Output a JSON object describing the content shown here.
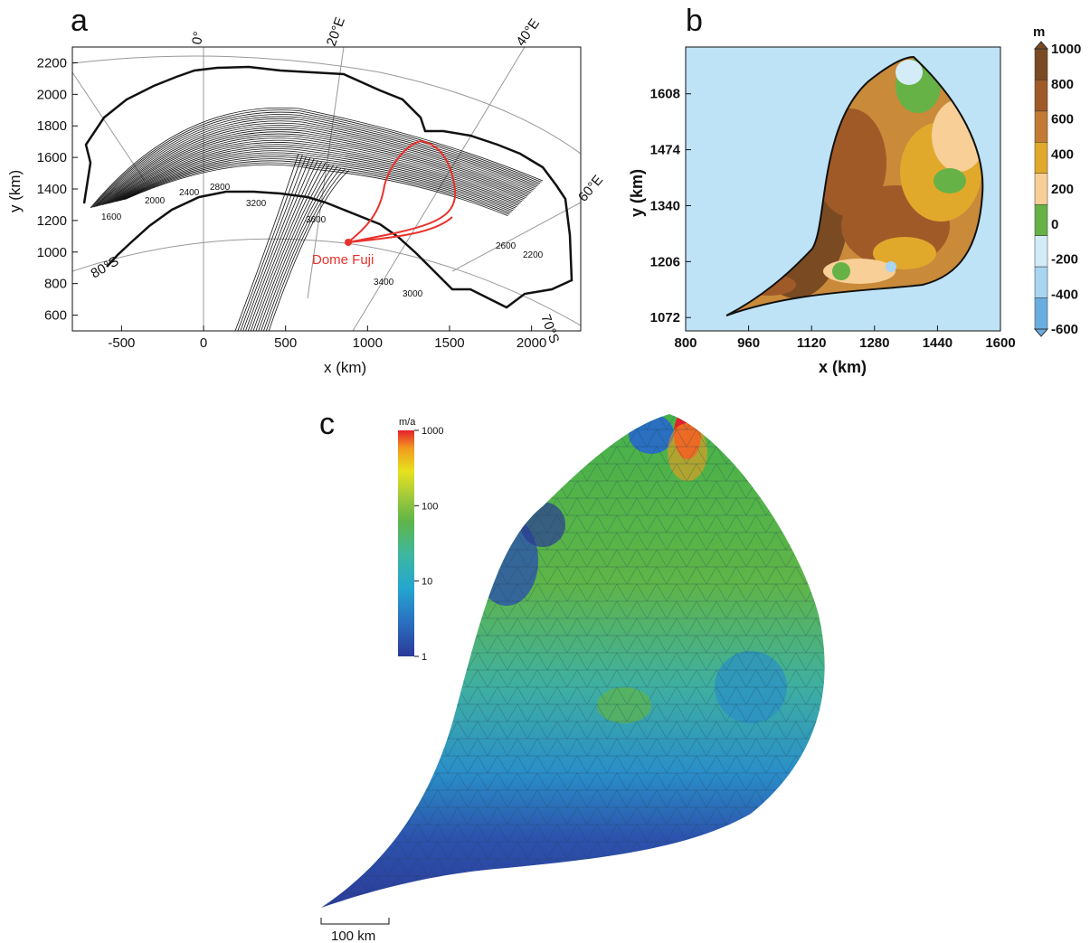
{
  "panels": {
    "a": {
      "label": "a",
      "xlabel": "x (km)",
      "ylabel": "y (km)",
      "x_ticks": [
        "-500",
        "0",
        "500",
        "1000",
        "1500",
        "2000"
      ],
      "y_ticks": [
        "600",
        "800",
        "1000",
        "1200",
        "1400",
        "1600",
        "1800",
        "2000",
        "2200"
      ],
      "meridians": [
        "0°",
        "20°E",
        "40°E",
        "60°E"
      ],
      "parallels": [
        "80°S",
        "70°S"
      ],
      "contour_labels": [
        "1600",
        "2000",
        "2400",
        "2800",
        "3200",
        "3600",
        "3400",
        "3000",
        "2600",
        "2200"
      ],
      "site_label": "Dome Fuji",
      "colors": {
        "outline": "#e8322b",
        "contour": "#111111",
        "graticule": "#999999"
      }
    },
    "b": {
      "label": "b",
      "xlabel": "x (km)",
      "ylabel": "y (km)",
      "x_ticks": [
        "800",
        "960",
        "1120",
        "1280",
        "1440",
        "1600"
      ],
      "y_ticks": [
        "1072",
        "1206",
        "1340",
        "1474",
        "1608"
      ],
      "colorbar_unit": "m",
      "colorbar_ticks": [
        "1000",
        "800",
        "600",
        "400",
        "200",
        "0",
        "-200",
        "-400",
        "-600"
      ],
      "colorbar_colors": [
        "#7a4a23",
        "#a05a28",
        "#c27a34",
        "#e0a92c",
        "#f7cf97",
        "#67b247",
        "#d4ecf8",
        "#a7d5f2",
        "#6aaee0"
      ],
      "background_color": "#bfe3f6"
    },
    "c": {
      "label": "c",
      "colorbar_unit": "m/a",
      "colorbar_ticks": [
        "1000",
        "100",
        "10",
        "1"
      ],
      "scale_bar_label": "100 km"
    }
  }
}
